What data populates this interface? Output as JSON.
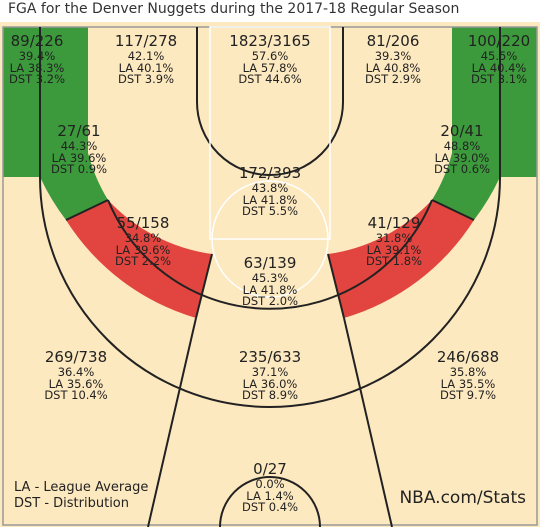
{
  "title": "FGA for the Denver Nuggets during the 2017-18 Regular Season",
  "legend": {
    "la": "LA - League Average",
    "dst": "DST - Distribution"
  },
  "watermark": "NBA.com/Stats",
  "colors": {
    "above_average": "#3c9a3c",
    "below_average": "#e2453f",
    "neutral": "#fde9c0",
    "lines": "#222222"
  },
  "chart_data": {
    "type": "heatmap",
    "title": "FGA for the Denver Nuggets during the 2017-18 Regular Season",
    "zones": [
      {
        "zone": "Left Corner 3",
        "fgm_fga": "89/226",
        "pct": "39.4%",
        "league": "LA 38.3%",
        "dist": "DST 3.2%",
        "fgm": 89,
        "fga": 226,
        "fg_pct": 39.4,
        "league_avg": 38.3,
        "distribution": 3.2,
        "rating": "above"
      },
      {
        "zone": "Left Wing 3",
        "fgm_fga": "117/278",
        "pct": "42.1%",
        "league": "LA 40.1%",
        "dist": "DST 3.9%",
        "fgm": 117,
        "fga": 278,
        "fg_pct": 42.1,
        "league_avg": 40.1,
        "distribution": 3.9,
        "rating": "neutral"
      },
      {
        "zone": "Restricted Area",
        "fgm_fga": "1823/3165",
        "pct": "57.6%",
        "league": "LA 57.8%",
        "dist": "DST 44.6%",
        "fgm": 1823,
        "fga": 3165,
        "fg_pct": 57.6,
        "league_avg": 57.8,
        "distribution": 44.6,
        "rating": "neutral"
      },
      {
        "zone": "Right Wing 3",
        "fgm_fga": "81/206",
        "pct": "39.3%",
        "league": "LA 40.8%",
        "dist": "DST 2.9%",
        "fgm": 81,
        "fga": 206,
        "fg_pct": 39.3,
        "league_avg": 40.8,
        "distribution": 2.9,
        "rating": "neutral"
      },
      {
        "zone": "Right Corner 3",
        "fgm_fga": "100/220",
        "pct": "45.5%",
        "league": "LA 40.4%",
        "dist": "DST 3.1%",
        "fgm": 100,
        "fga": 220,
        "fg_pct": 45.5,
        "league_avg": 40.4,
        "distribution": 3.1,
        "rating": "above"
      },
      {
        "zone": "Left Baseline Mid-Range",
        "fgm_fga": "27/61",
        "pct": "44.3%",
        "league": "LA 39.6%",
        "dist": "DST 0.9%",
        "fgm": 27,
        "fga": 61,
        "fg_pct": 44.3,
        "league_avg": 39.6,
        "distribution": 0.9,
        "rating": "above"
      },
      {
        "zone": "Right Baseline Mid-Range",
        "fgm_fga": "20/41",
        "pct": "48.8%",
        "league": "LA 39.0%",
        "dist": "DST 0.6%",
        "fgm": 20,
        "fga": 41,
        "fg_pct": 48.8,
        "league_avg": 39.0,
        "distribution": 0.6,
        "rating": "above"
      },
      {
        "zone": "In The Paint (Non-RA)",
        "fgm_fga": "172/393",
        "pct": "43.8%",
        "league": "LA 41.8%",
        "dist": "DST 5.5%",
        "fgm": 172,
        "fga": 393,
        "fg_pct": 43.8,
        "league_avg": 41.8,
        "distribution": 5.5,
        "rating": "neutral"
      },
      {
        "zone": "Left Wing Mid-Range",
        "fgm_fga": "55/158",
        "pct": "34.8%",
        "league": "LA 39.6%",
        "dist": "DST 2.2%",
        "fgm": 55,
        "fga": 158,
        "fg_pct": 34.8,
        "league_avg": 39.6,
        "distribution": 2.2,
        "rating": "below"
      },
      {
        "zone": "Right Wing Mid-Range",
        "fgm_fga": "41/129",
        "pct": "31.8%",
        "league": "LA 39.1%",
        "dist": "DST 1.8%",
        "fgm": 41,
        "fga": 129,
        "fg_pct": 31.8,
        "league_avg": 39.1,
        "distribution": 1.8,
        "rating": "below"
      },
      {
        "zone": "Top Of Key Mid-Range",
        "fgm_fga": "63/139",
        "pct": "45.3%",
        "league": "LA 41.8%",
        "dist": "DST 2.0%",
        "fgm": 63,
        "fga": 139,
        "fg_pct": 45.3,
        "league_avg": 41.8,
        "distribution": 2.0,
        "rating": "neutral"
      },
      {
        "zone": "Left Above Break 3",
        "fgm_fga": "269/738",
        "pct": "36.4%",
        "league": "LA 35.6%",
        "dist": "DST 10.4%",
        "fgm": 269,
        "fga": 738,
        "fg_pct": 36.4,
        "league_avg": 35.6,
        "distribution": 10.4,
        "rating": "neutral"
      },
      {
        "zone": "Center Above Break 3",
        "fgm_fga": "235/633",
        "pct": "37.1%",
        "league": "LA 36.0%",
        "dist": "DST 8.9%",
        "fgm": 235,
        "fga": 633,
        "fg_pct": 37.1,
        "league_avg": 36.0,
        "distribution": 8.9,
        "rating": "neutral"
      },
      {
        "zone": "Right Above Break 3",
        "fgm_fga": "246/688",
        "pct": "35.8%",
        "league": "LA 35.5%",
        "dist": "DST 9.7%",
        "fgm": 246,
        "fga": 688,
        "fg_pct": 35.8,
        "league_avg": 35.5,
        "distribution": 9.7,
        "rating": "neutral"
      },
      {
        "zone": "Backcourt",
        "fgm_fga": "0/27",
        "pct": "0.0%",
        "league": "LA 1.4%",
        "dist": "DST 0.4%",
        "fgm": 0,
        "fga": 27,
        "fg_pct": 0.0,
        "league_avg": 1.4,
        "distribution": 0.4,
        "rating": "neutral"
      }
    ]
  }
}
